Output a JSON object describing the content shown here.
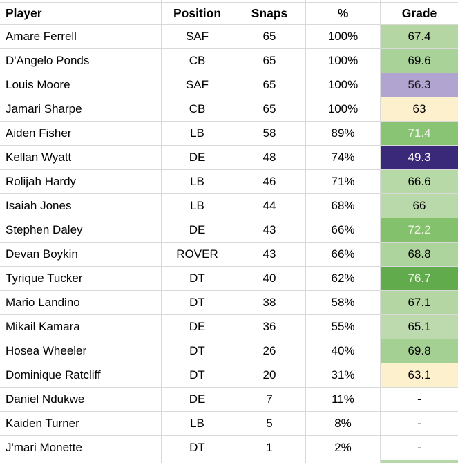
{
  "table": {
    "columns": [
      {
        "key": "player",
        "label": "Player"
      },
      {
        "key": "position",
        "label": "Position"
      },
      {
        "key": "snaps",
        "label": "Snaps"
      },
      {
        "key": "pct",
        "label": "%"
      },
      {
        "key": "grade",
        "label": "Grade"
      }
    ],
    "rows": [
      {
        "player": "Amare Ferrell",
        "position": "SAF",
        "snaps": "65",
        "pct": "100%",
        "grade": "67.4",
        "grade_bg": "#b3d6a2",
        "grade_fg": "#000000"
      },
      {
        "player": "D'Angelo Ponds",
        "position": "CB",
        "snaps": "65",
        "pct": "100%",
        "grade": "69.6",
        "grade_bg": "#a9d298",
        "grade_fg": "#000000"
      },
      {
        "player": "Louis Moore",
        "position": "SAF",
        "snaps": "65",
        "pct": "100%",
        "grade": "56.3",
        "grade_bg": "#b1a4d1",
        "grade_fg": "#1a1a1a"
      },
      {
        "player": "Jamari Sharpe",
        "position": "CB",
        "snaps": "65",
        "pct": "100%",
        "grade": "63",
        "grade_bg": "#fdf0cc",
        "grade_fg": "#000000"
      },
      {
        "player": "Aiden Fisher",
        "position": "LB",
        "snaps": "58",
        "pct": "89%",
        "grade": "71.4",
        "grade_bg": "#88c473",
        "grade_fg": "#eef3e6"
      },
      {
        "player": "Kellan Wyatt",
        "position": "DE",
        "snaps": "48",
        "pct": "74%",
        "grade": "49.3",
        "grade_bg": "#3a2878",
        "grade_fg": "#ffffff"
      },
      {
        "player": "Rolijah Hardy",
        "position": "LB",
        "snaps": "46",
        "pct": "71%",
        "grade": "66.6",
        "grade_bg": "#b7d8a7",
        "grade_fg": "#000000"
      },
      {
        "player": "Isaiah Jones",
        "position": "LB",
        "snaps": "44",
        "pct": "68%",
        "grade": "66",
        "grade_bg": "#b9d9aa",
        "grade_fg": "#000000"
      },
      {
        "player": "Stephen Daley",
        "position": "DE",
        "snaps": "43",
        "pct": "66%",
        "grade": "72.2",
        "grade_bg": "#84c16d",
        "grade_fg": "#eef3e6"
      },
      {
        "player": "Devan Boykin",
        "position": "ROVER",
        "snaps": "43",
        "pct": "66%",
        "grade": "68.8",
        "grade_bg": "#add49d",
        "grade_fg": "#000000"
      },
      {
        "player": "Tyrique Tucker",
        "position": "DT",
        "snaps": "40",
        "pct": "62%",
        "grade": "76.7",
        "grade_bg": "#61ab4c",
        "grade_fg": "#f2f6ec"
      },
      {
        "player": "Mario Landino",
        "position": "DT",
        "snaps": "38",
        "pct": "58%",
        "grade": "67.1",
        "grade_bg": "#b4d6a3",
        "grade_fg": "#000000"
      },
      {
        "player": "Mikail Kamara",
        "position": "DE",
        "snaps": "36",
        "pct": "55%",
        "grade": "65.1",
        "grade_bg": "#bcdaae",
        "grade_fg": "#000000"
      },
      {
        "player": "Hosea Wheeler",
        "position": "DT",
        "snaps": "26",
        "pct": "40%",
        "grade": "69.8",
        "grade_bg": "#a5d093",
        "grade_fg": "#000000"
      },
      {
        "player": "Dominique Ratcliff",
        "position": "DT",
        "snaps": "20",
        "pct": "31%",
        "grade": "63.1",
        "grade_bg": "#fdf0cc",
        "grade_fg": "#000000"
      },
      {
        "player": "Daniel Ndukwe",
        "position": "DE",
        "snaps": "7",
        "pct": "11%",
        "grade": "-",
        "grade_bg": "#ffffff",
        "grade_fg": "#000000"
      },
      {
        "player": "Kaiden Turner",
        "position": "LB",
        "snaps": "5",
        "pct": "8%",
        "grade": "-",
        "grade_bg": "#ffffff",
        "grade_fg": "#000000"
      },
      {
        "player": "J'mari Monette",
        "position": "DT",
        "snaps": "1",
        "pct": "2%",
        "grade": "-",
        "grade_bg": "#ffffff",
        "grade_fg": "#000000"
      }
    ],
    "partial_bottom_grade_bg": "#b6d7a6"
  },
  "colors": {
    "gridline": "#d9d9d9",
    "background": "#ffffff",
    "header_text": "#000000"
  }
}
